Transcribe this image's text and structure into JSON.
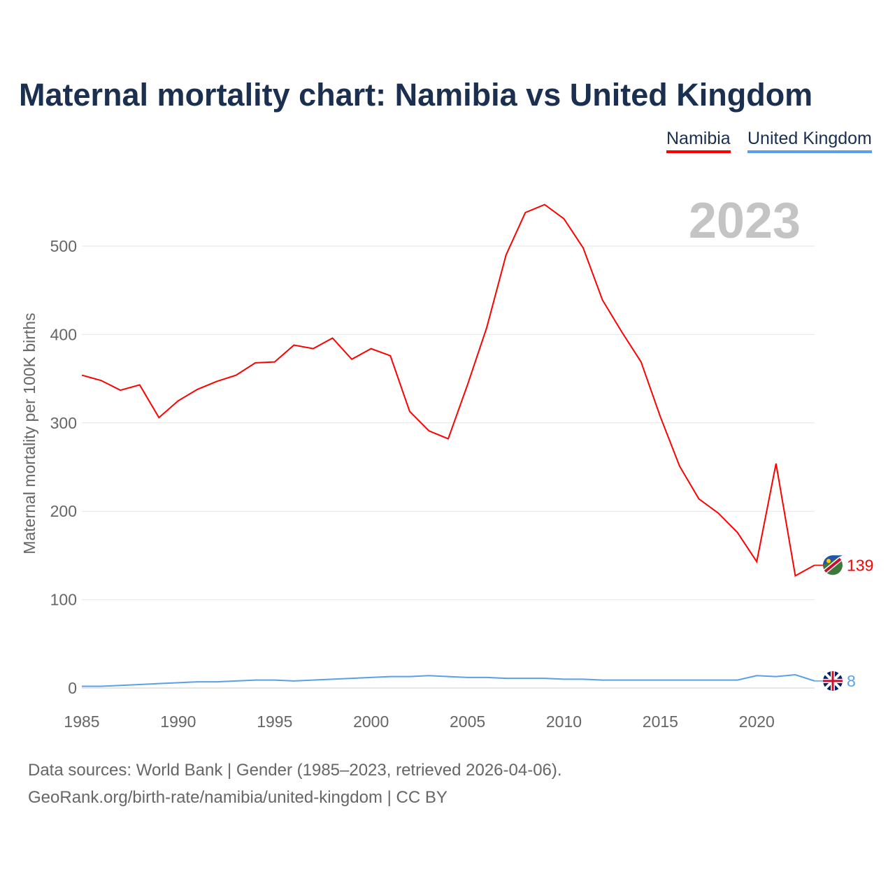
{
  "title": "Maternal mortality chart: Namibia vs United Kingdom",
  "legend": [
    {
      "label": "Namibia",
      "color": "#ff0000"
    },
    {
      "label": "United Kingdom",
      "color": "#5aa0e8"
    }
  ],
  "year_label": "2023",
  "sources": [
    "Data sources: World Bank | Gender (1985–2023, retrieved 2026-04-06).",
    "GeoRank.org/birth-rate/namibia/united-kingdom | CC BY"
  ],
  "chart_data": {
    "type": "line",
    "title": "Maternal mortality chart: Namibia vs United Kingdom",
    "xlabel": "",
    "ylabel": "Maternal mortality per 100K births",
    "xlim": [
      1985,
      2023
    ],
    "ylim": [
      0,
      560
    ],
    "xticks": [
      1985,
      1990,
      1995,
      2000,
      2005,
      2010,
      2015,
      2020
    ],
    "yticks": [
      0,
      100,
      200,
      300,
      400,
      500
    ],
    "x": [
      1985,
      1986,
      1987,
      1988,
      1989,
      1990,
      1991,
      1992,
      1993,
      1994,
      1995,
      1996,
      1997,
      1998,
      1999,
      2000,
      2001,
      2002,
      2003,
      2004,
      2005,
      2006,
      2007,
      2008,
      2009,
      2010,
      2011,
      2012,
      2013,
      2014,
      2015,
      2016,
      2017,
      2018,
      2019,
      2020,
      2021,
      2022,
      2023
    ],
    "series": [
      {
        "name": "Namibia",
        "color": "#ff0000",
        "end_label": "139",
        "values": [
          354,
          348,
          337,
          343,
          306,
          325,
          338,
          347,
          354,
          368,
          369,
          388,
          384,
          396,
          372,
          384,
          376,
          313,
          291,
          282,
          343,
          408,
          490,
          538,
          547,
          531,
          498,
          439,
          403,
          369,
          307,
          251,
          214,
          198,
          176,
          143,
          254,
          127,
          139
        ]
      },
      {
        "name": "United Kingdom",
        "color": "#5aa0e8",
        "end_label": "8",
        "values": [
          2,
          2,
          3,
          4,
          5,
          6,
          7,
          7,
          8,
          9,
          9,
          8,
          9,
          10,
          11,
          12,
          13,
          13,
          14,
          13,
          12,
          12,
          11,
          11,
          11,
          10,
          10,
          9,
          9,
          9,
          9,
          9,
          9,
          9,
          9,
          14,
          13,
          15,
          8
        ]
      }
    ]
  }
}
